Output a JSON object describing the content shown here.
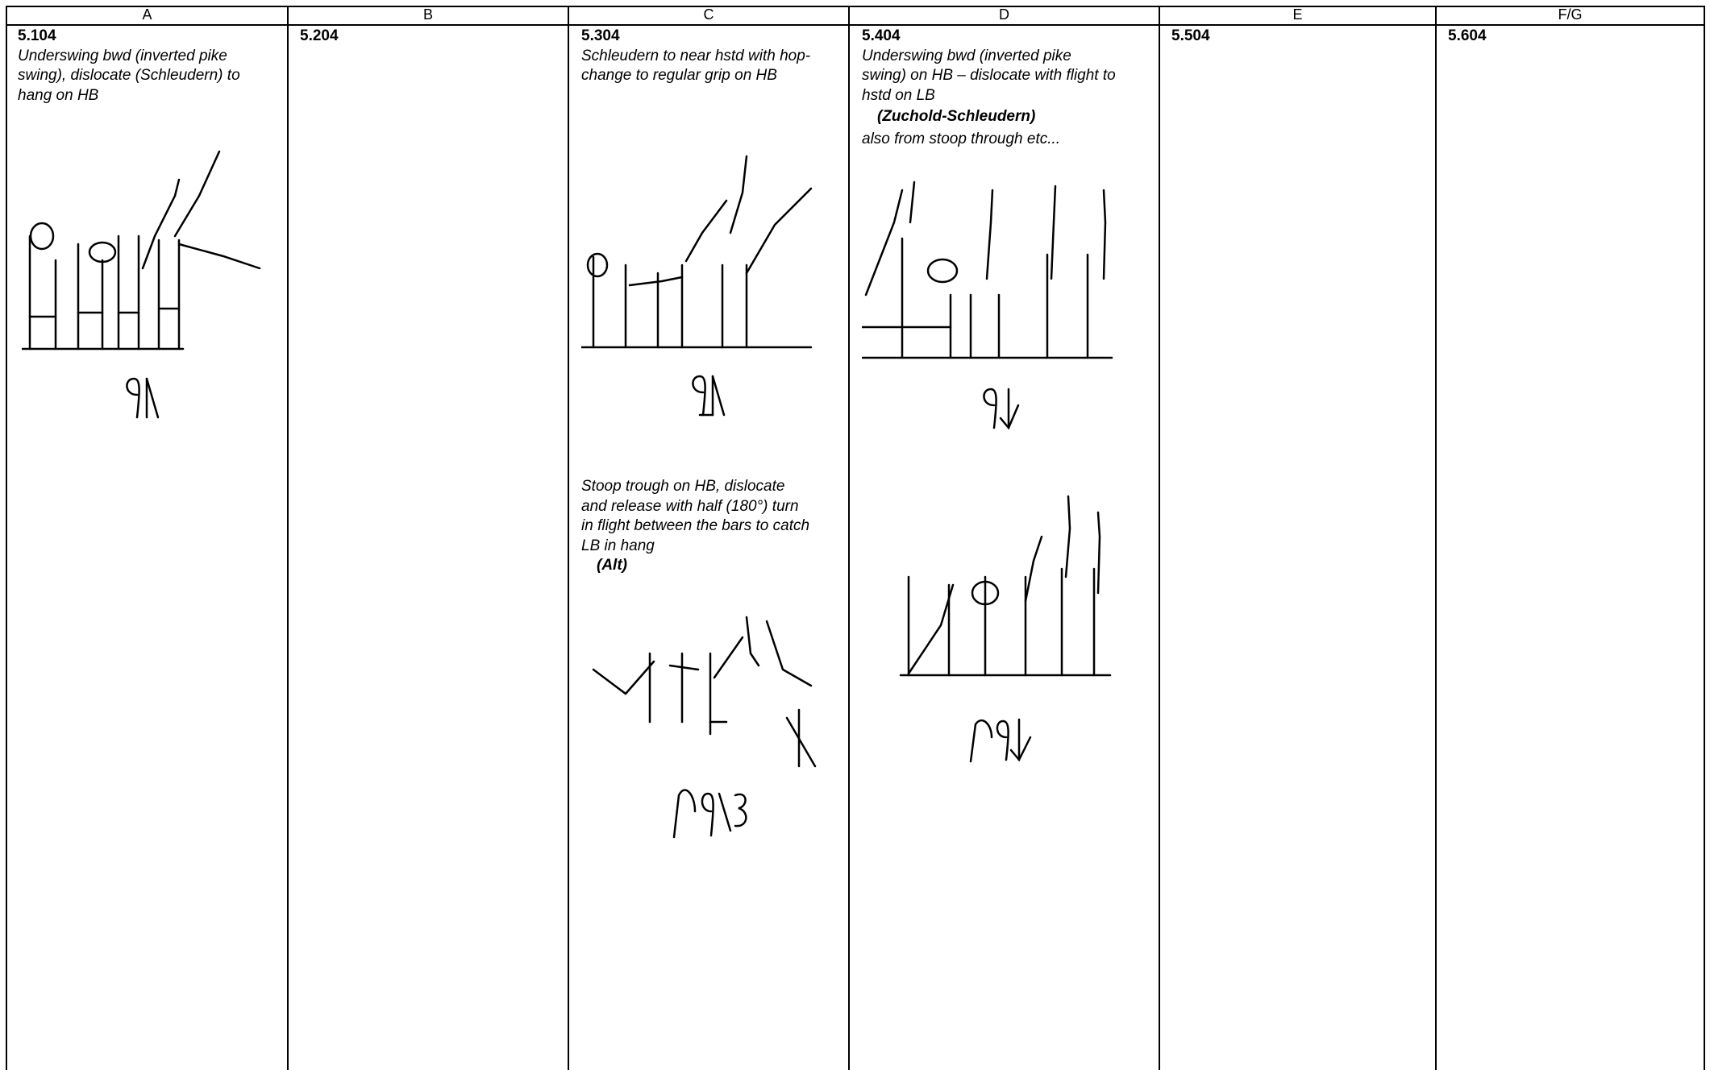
{
  "table": {
    "headers": [
      "A",
      "B",
      "C",
      "D",
      "E",
      "F/G"
    ],
    "cells": [
      {
        "code": "5.104",
        "description": [
          "Underswing bwd (inverted pike",
          "swing), dislocate (Schleudern) to",
          "hang on HB"
        ]
      },
      {
        "code": "5.204"
      },
      {
        "code": "5.304",
        "description": [
          "Schleudern to near hstd with hop-",
          "change to regular grip on HB"
        ],
        "variant": {
          "description": [
            "Stoop trough on HB, dislocate",
            "and release with half (180°) turn",
            "in flight between the bars to catch",
            "LB in hang"
          ],
          "name": "(Alt)"
        }
      },
      {
        "code": "5.404",
        "description": [
          "Underswing bwd (inverted pike",
          "swing) on HB – dislocate with flight to",
          "hstd on LB"
        ],
        "name": "(Zuchold-Schleudern)",
        "note": "also from stoop through etc..."
      },
      {
        "code": "5.504"
      },
      {
        "code": "5.604"
      }
    ]
  }
}
